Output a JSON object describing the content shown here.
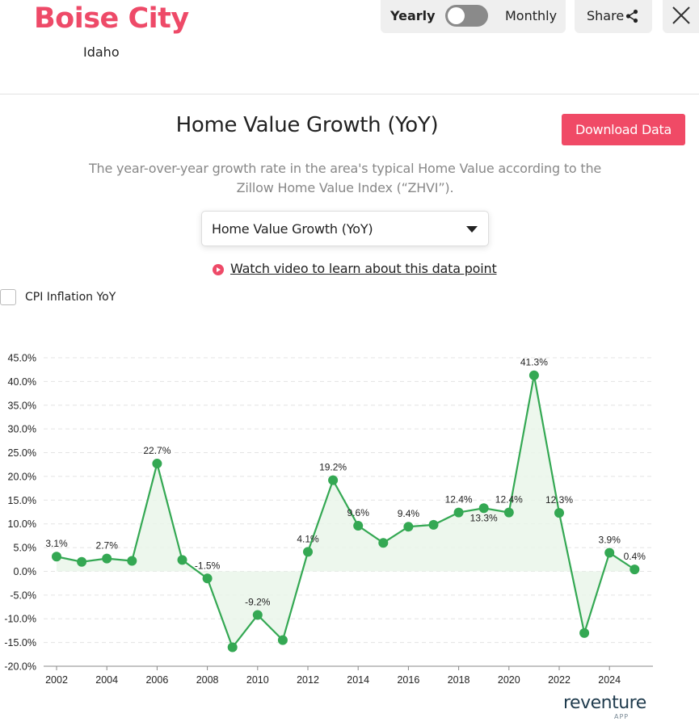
{
  "header": {
    "city": "Boise City",
    "state": "Idaho",
    "toggle_left": "Yearly",
    "toggle_right": "Monthly",
    "share_label": "Share"
  },
  "metric": {
    "title": "Home Value Growth (YoY)",
    "download_label": "Download Data",
    "description": "The year-over-year growth rate in the area's typical Home Value according to the Zillow Home Value Index (“ZHVI”).",
    "selected_option": "Home Value Growth (YoY)",
    "video_link": "Watch video to learn about this data point",
    "cpi_label": "CPI Inflation YoY"
  },
  "colors": {
    "brand": "#ee4a68",
    "download": "#f04a66",
    "line": "#34a853",
    "area": "#e8f5e9"
  },
  "logo": {
    "name": "reventure",
    "sub": "APP"
  },
  "chart_data": {
    "type": "line",
    "x": [
      2002,
      2003,
      2004,
      2005,
      2006,
      2007,
      2008,
      2009,
      2010,
      2011,
      2012,
      2013,
      2014,
      2015,
      2016,
      2017,
      2018,
      2019,
      2020,
      2021,
      2022,
      2023,
      2024,
      2025
    ],
    "series": [
      {
        "values": [
          3.1,
          2.0,
          2.7,
          2.2,
          22.7,
          2.4,
          -1.5,
          -16.0,
          -9.2,
          -14.5,
          4.1,
          19.2,
          9.6,
          6.0,
          9.4,
          9.8,
          12.4,
          13.3,
          12.4,
          41.3,
          12.3,
          -13.0,
          3.9,
          0.4
        ]
      }
    ],
    "point_labels": {
      "2002": "3.1%",
      "2004": "2.7%",
      "2006": "22.7%",
      "2008": "-1.5%",
      "2010": "-9.2%",
      "2012": "4.1%",
      "2013": "19.2%",
      "2014": "9.6%",
      "2016": "9.4%",
      "2018": "12.4%",
      "2019": "13.3%",
      "2020": "12.4%",
      "2021": "41.3%",
      "2022": "12.3%",
      "2024": "3.9%",
      "2025": "0.4%"
    },
    "x_ticks": [
      "2002",
      "2004",
      "2006",
      "2008",
      "2010",
      "2012",
      "2014",
      "2016",
      "2018",
      "2020",
      "2022",
      "2024"
    ],
    "y_ticks": [
      "45.0%",
      "40.0%",
      "35.0%",
      "30.0%",
      "25.0%",
      "20.0%",
      "15.0%",
      "10.0%",
      "5.0%",
      "0.0%",
      "-5.0%",
      "-10.0%",
      "-15.0%",
      "-20.0%"
    ],
    "ylim": [
      -20,
      45
    ],
    "grid": true,
    "title": "",
    "xlabel": "",
    "ylabel": ""
  }
}
